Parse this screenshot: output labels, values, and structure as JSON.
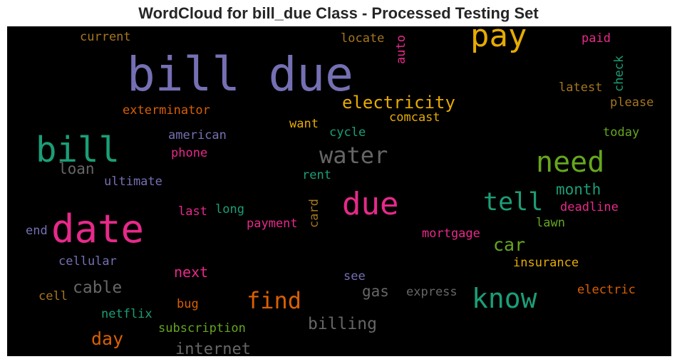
{
  "title": "WordCloud for bill_due Class - Processed Testing Set",
  "chart_data": {
    "type": "wordcloud",
    "title": "WordCloud for bill_due Class - Processed Testing Set",
    "background": "#000000",
    "palette": "Dark2",
    "words": [
      {
        "text": "bill due",
        "weight": 100,
        "color": "#7570b3"
      },
      {
        "text": "date",
        "weight": 82,
        "color": "#e7298a"
      },
      {
        "text": "bill",
        "weight": 74,
        "color": "#1b9e77"
      },
      {
        "text": "pay",
        "weight": 68,
        "color": "#e6ab02"
      },
      {
        "text": "due",
        "weight": 65,
        "color": "#e7298a"
      },
      {
        "text": "need",
        "weight": 60,
        "color": "#66a61e"
      },
      {
        "text": "know",
        "weight": 57,
        "color": "#1b9e77"
      },
      {
        "text": "tell",
        "weight": 53,
        "color": "#1b9e77"
      },
      {
        "text": "water",
        "weight": 48,
        "color": "#666666"
      },
      {
        "text": "find",
        "weight": 48,
        "color": "#d95f02"
      },
      {
        "text": "electricity",
        "weight": 37,
        "color": "#e6ab02"
      },
      {
        "text": "car",
        "weight": 37,
        "color": "#66a61e"
      },
      {
        "text": "day",
        "weight": 37,
        "color": "#d95f02"
      },
      {
        "text": "billing",
        "weight": 35,
        "color": "#666666"
      },
      {
        "text": "cable",
        "weight": 34,
        "color": "#666666"
      },
      {
        "text": "internet",
        "weight": 33,
        "color": "#666666"
      },
      {
        "text": "month",
        "weight": 32,
        "color": "#1b9e77"
      },
      {
        "text": "loan",
        "weight": 32,
        "color": "#666666"
      },
      {
        "text": "gas",
        "weight": 32,
        "color": "#666666"
      },
      {
        "text": "next",
        "weight": 30,
        "color": "#e7298a"
      },
      {
        "text": "comcast",
        "weight": 26,
        "color": "#e6ab02"
      },
      {
        "text": "exterminator",
        "weight": 25,
        "color": "#d95f02"
      },
      {
        "text": "current",
        "weight": 24,
        "color": "#a6761d"
      },
      {
        "text": "locate",
        "weight": 24,
        "color": "#a6761d"
      },
      {
        "text": "paid",
        "weight": 24,
        "color": "#e7298a"
      },
      {
        "text": "auto",
        "weight": 24,
        "color": "#e7298a"
      },
      {
        "text": "check",
        "weight": 24,
        "color": "#1b9e77"
      },
      {
        "text": "latest",
        "weight": 24,
        "color": "#a6761d"
      },
      {
        "text": "please",
        "weight": 24,
        "color": "#a6761d"
      },
      {
        "text": "want",
        "weight": 24,
        "color": "#e6ab02"
      },
      {
        "text": "american",
        "weight": 24,
        "color": "#7570b3"
      },
      {
        "text": "cycle",
        "weight": 24,
        "color": "#1b9e77"
      },
      {
        "text": "today",
        "weight": 24,
        "color": "#66a61e"
      },
      {
        "text": "phone",
        "weight": 24,
        "color": "#e7298a"
      },
      {
        "text": "ultimate",
        "weight": 24,
        "color": "#7570b3"
      },
      {
        "text": "rent",
        "weight": 24,
        "color": "#1b9e77"
      },
      {
        "text": "card",
        "weight": 24,
        "color": "#a6761d"
      },
      {
        "text": "last",
        "weight": 24,
        "color": "#e7298a"
      },
      {
        "text": "long",
        "weight": 24,
        "color": "#1b9e77"
      },
      {
        "text": "deadline",
        "weight": 24,
        "color": "#e7298a"
      },
      {
        "text": "end",
        "weight": 24,
        "color": "#7570b3"
      },
      {
        "text": "payment",
        "weight": 24,
        "color": "#e7298a"
      },
      {
        "text": "lawn",
        "weight": 24,
        "color": "#66a61e"
      },
      {
        "text": "mortgage",
        "weight": 24,
        "color": "#e7298a"
      },
      {
        "text": "cellular",
        "weight": 24,
        "color": "#7570b3"
      },
      {
        "text": "insurance",
        "weight": 24,
        "color": "#e6ab02"
      },
      {
        "text": "see",
        "weight": 24,
        "color": "#7570b3"
      },
      {
        "text": "express",
        "weight": 24,
        "color": "#666666"
      },
      {
        "text": "electric",
        "weight": 24,
        "color": "#d95f02"
      },
      {
        "text": "cell",
        "weight": 24,
        "color": "#a6761d"
      },
      {
        "text": "bug",
        "weight": 24,
        "color": "#d95f02"
      },
      {
        "text": "netflix",
        "weight": 24,
        "color": "#1b9e77"
      },
      {
        "text": "subscription",
        "weight": 24,
        "color": "#66a61e"
      }
    ]
  }
}
